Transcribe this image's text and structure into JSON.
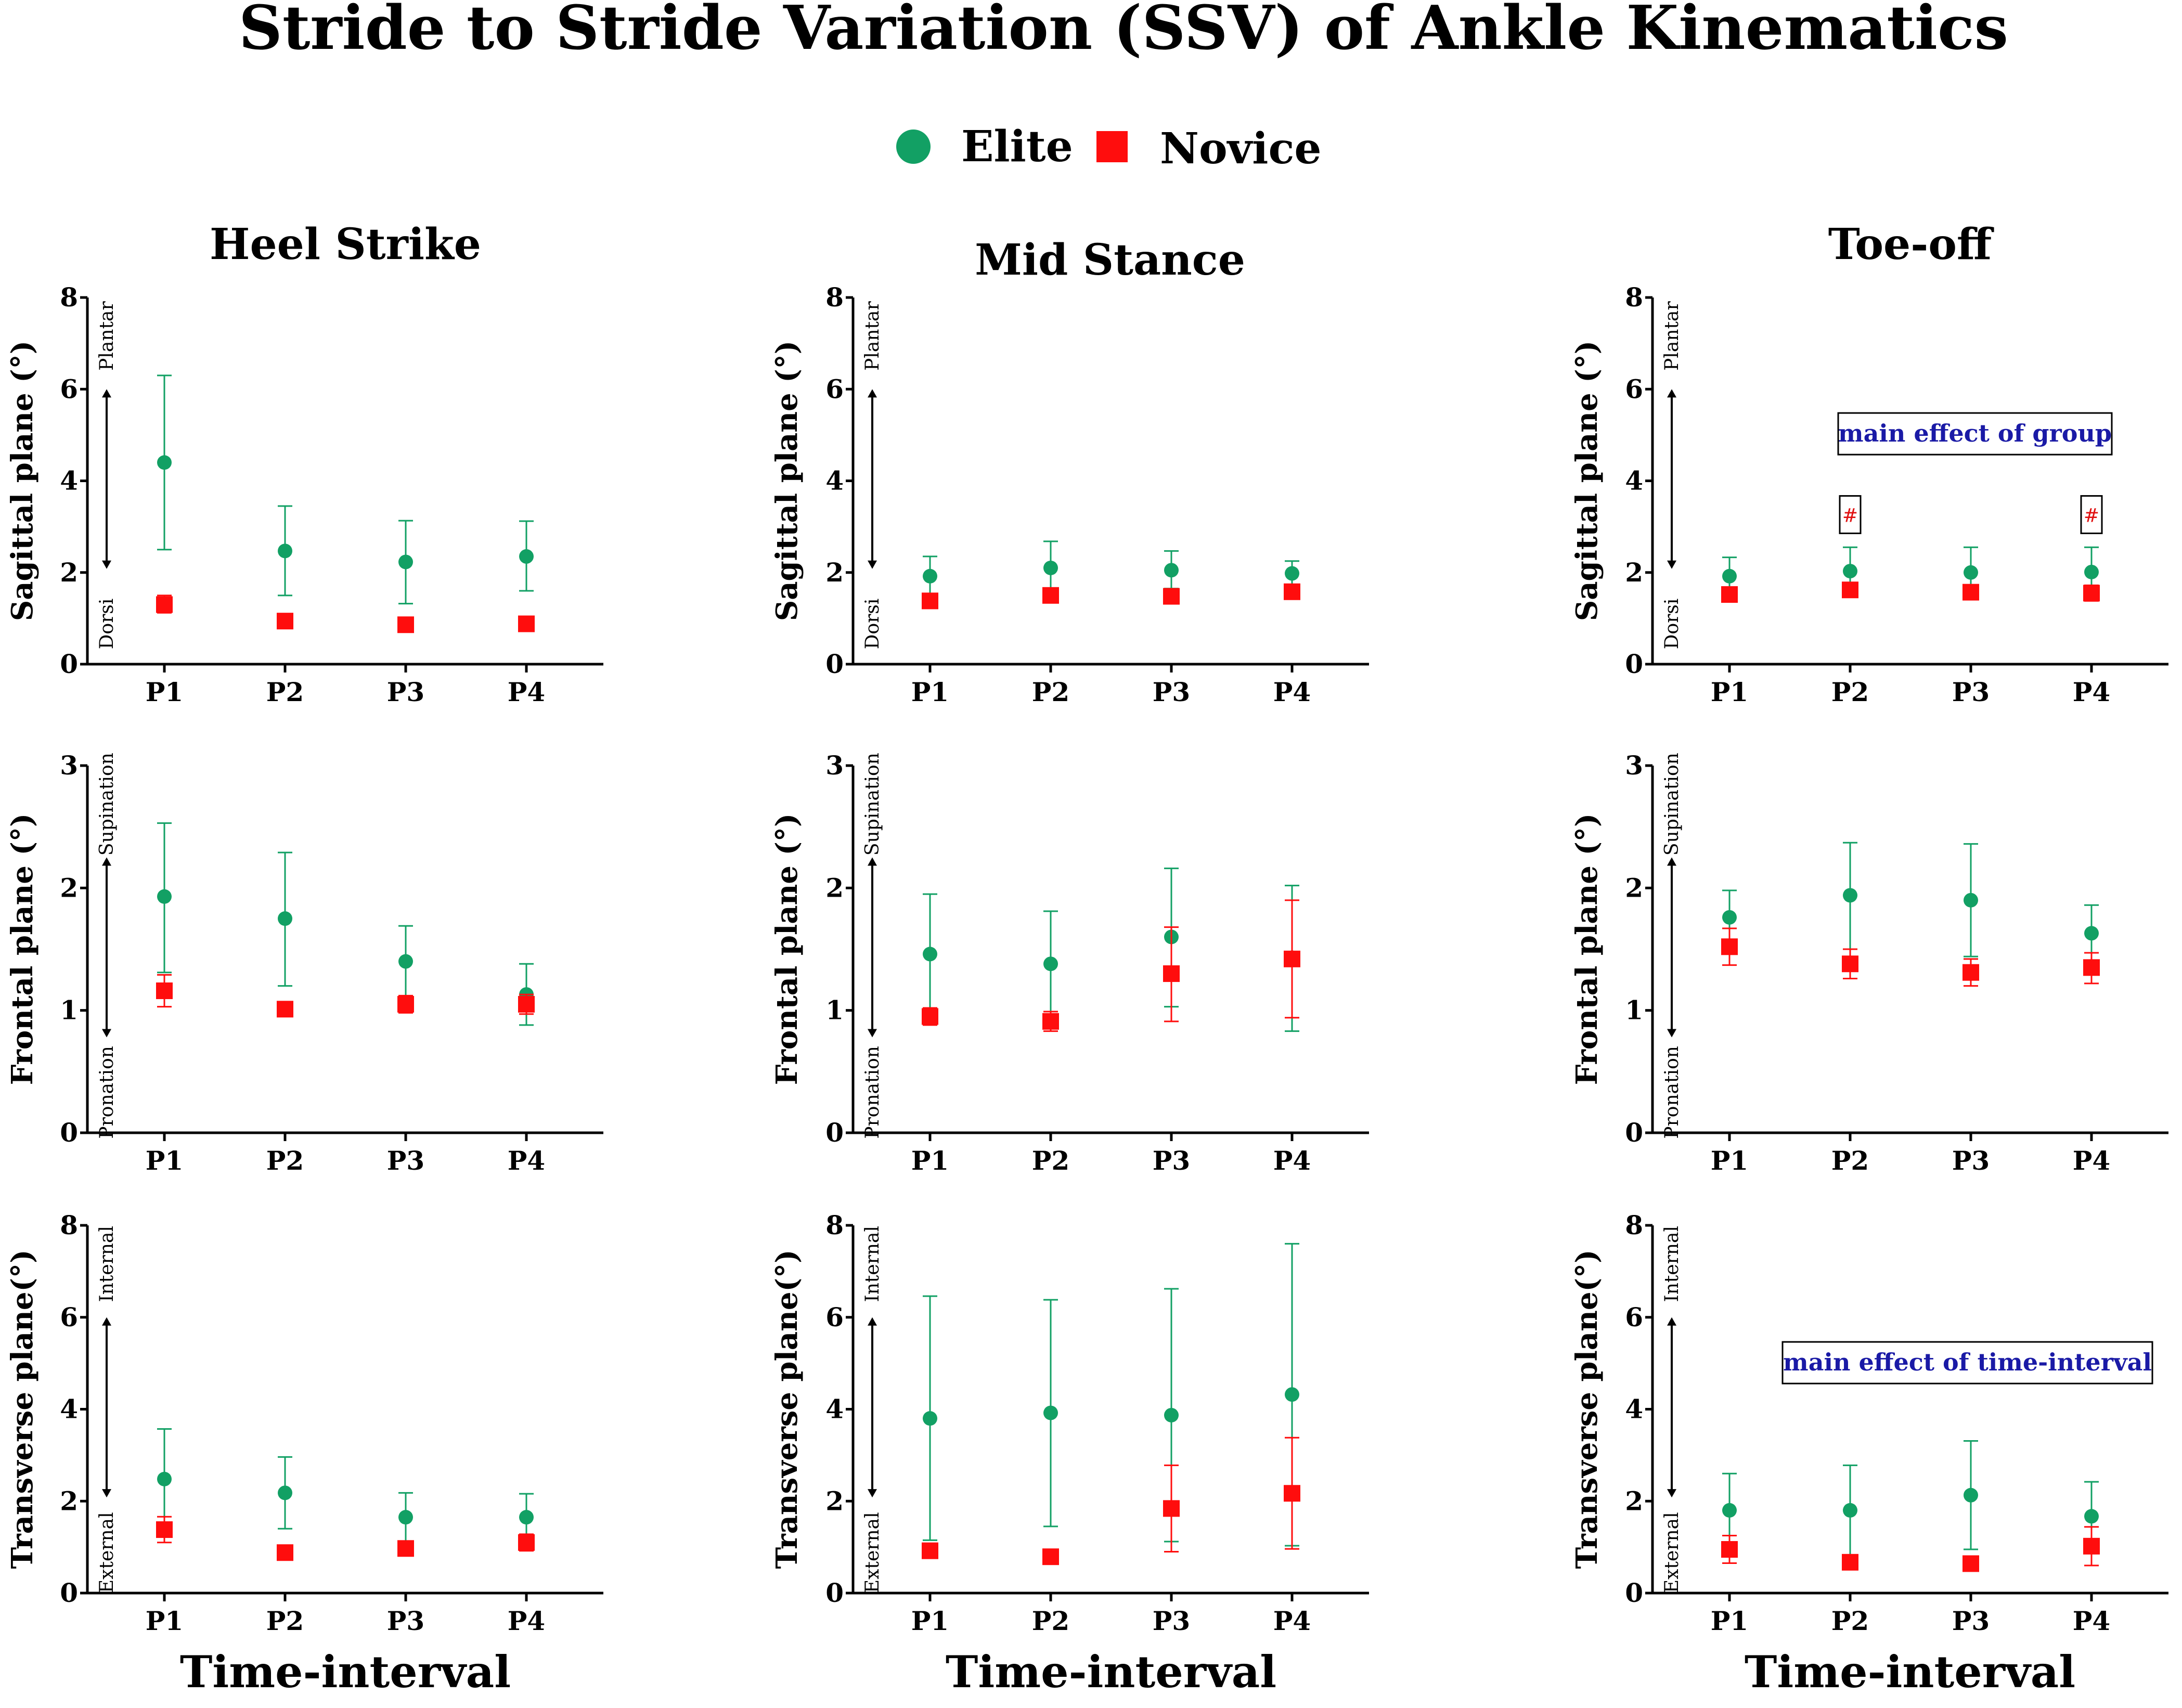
{
  "title": "Stride to Stride Variation (SSV) of Ankle Kinematics",
  "legend": [
    {
      "label": "Elite",
      "color": "#12a064",
      "marker": "circle"
    },
    {
      "label": "Novice",
      "color": "#ff0d0d",
      "marker": "square"
    }
  ],
  "columns": [
    "Heel Strike",
    "Mid Stance",
    "Toe-off"
  ],
  "x_axis_label": "Time-interval",
  "rows": [
    {
      "ylabel": "Sagittal plane (°)",
      "ylim": [
        0,
        8
      ],
      "ticks": [
        0,
        2,
        4,
        6,
        8
      ],
      "dir_top": "Plantar",
      "dir_bottom": "Dorsi"
    },
    {
      "ylabel": "Frontal plane (°)",
      "ylim": [
        0,
        3
      ],
      "ticks": [
        0,
        1,
        2,
        3
      ],
      "dir_top": "Supination",
      "dir_bottom": "Pronation"
    },
    {
      "ylabel": "Transverse plane(°)",
      "ylim": [
        0,
        8
      ],
      "ticks": [
        0,
        2,
        4,
        6,
        8
      ],
      "dir_top": "Internal",
      "dir_bottom": "External"
    }
  ],
  "chart_data": [
    {
      "type": "scatter",
      "row": 0,
      "col": 0,
      "categories": [
        "P1",
        "P2",
        "P3",
        "P4"
      ],
      "ylim": [
        0,
        8
      ],
      "series": [
        {
          "name": "Elite",
          "values": [
            4.4,
            2.47,
            2.23,
            2.35
          ],
          "lower": [
            2.5,
            1.5,
            1.32,
            1.6
          ],
          "upper": [
            6.3,
            3.45,
            3.13,
            3.12
          ]
        },
        {
          "name": "Novice",
          "values": [
            1.3,
            0.94,
            0.86,
            0.88
          ],
          "lower": [
            1.12,
            0.88,
            0.8,
            0.82
          ],
          "upper": [
            1.5,
            1.0,
            0.92,
            0.94
          ]
        }
      ]
    },
    {
      "type": "scatter",
      "row": 0,
      "col": 1,
      "categories": [
        "P1",
        "P2",
        "P3",
        "P4"
      ],
      "ylim": [
        0,
        8
      ],
      "series": [
        {
          "name": "Elite",
          "values": [
            1.92,
            2.1,
            2.05,
            1.98
          ],
          "lower": [
            1.5,
            1.55,
            1.65,
            1.72
          ],
          "upper": [
            2.35,
            2.68,
            2.47,
            2.25
          ]
        },
        {
          "name": "Novice",
          "values": [
            1.38,
            1.5,
            1.48,
            1.58
          ],
          "lower": [
            1.32,
            1.44,
            1.42,
            1.52
          ],
          "upper": [
            1.44,
            1.56,
            1.54,
            1.64
          ]
        }
      ]
    },
    {
      "type": "scatter",
      "row": 0,
      "col": 2,
      "categories": [
        "P1",
        "P2",
        "P3",
        "P4"
      ],
      "ylim": [
        0,
        8
      ],
      "annotations": [
        {
          "text": "main effect of group"
        },
        {
          "text": "#",
          "at": "P2"
        },
        {
          "text": "#",
          "at": "P4"
        }
      ],
      "series": [
        {
          "name": "Elite",
          "values": [
            1.92,
            2.03,
            2.0,
            2.01
          ],
          "lower": [
            1.55,
            1.55,
            1.55,
            1.55
          ],
          "upper": [
            2.33,
            2.55,
            2.55,
            2.55
          ]
        },
        {
          "name": "Novice",
          "values": [
            1.52,
            1.62,
            1.57,
            1.55
          ],
          "lower": [
            1.38,
            1.48,
            1.45,
            1.38
          ],
          "upper": [
            1.66,
            1.76,
            1.69,
            1.72
          ]
        }
      ]
    },
    {
      "type": "scatter",
      "row": 1,
      "col": 0,
      "categories": [
        "P1",
        "P2",
        "P3",
        "P4"
      ],
      "ylim": [
        0,
        3
      ],
      "series": [
        {
          "name": "Elite",
          "values": [
            1.93,
            1.75,
            1.4,
            1.13
          ],
          "lower": [
            1.31,
            1.2,
            1.11,
            0.88
          ],
          "upper": [
            2.53,
            2.29,
            1.69,
            1.38
          ]
        },
        {
          "name": "Novice",
          "values": [
            1.16,
            1.01,
            1.05,
            1.05
          ],
          "lower": [
            1.03,
            0.95,
            0.98,
            0.97
          ],
          "upper": [
            1.29,
            1.07,
            1.12,
            1.13
          ]
        }
      ]
    },
    {
      "type": "scatter",
      "row": 1,
      "col": 1,
      "categories": [
        "P1",
        "P2",
        "P3",
        "P4"
      ],
      "ylim": [
        0,
        3
      ],
      "series": [
        {
          "name": "Elite",
          "values": [
            1.46,
            1.38,
            1.6,
            1.43
          ],
          "lower": [
            0.98,
            0.93,
            1.03,
            0.83
          ],
          "upper": [
            1.95,
            1.81,
            2.16,
            2.02
          ]
        },
        {
          "name": "Novice",
          "values": [
            0.95,
            0.91,
            1.3,
            1.42
          ],
          "lower": [
            0.88,
            0.83,
            0.91,
            0.94
          ],
          "upper": [
            1.02,
            0.99,
            1.68,
            1.9
          ]
        }
      ]
    },
    {
      "type": "scatter",
      "row": 1,
      "col": 2,
      "categories": [
        "P1",
        "P2",
        "P3",
        "P4"
      ],
      "ylim": [
        0,
        3
      ],
      "series": [
        {
          "name": "Elite",
          "values": [
            1.76,
            1.94,
            1.9,
            1.63
          ],
          "lower": [
            1.55,
            1.5,
            1.44,
            1.41
          ],
          "upper": [
            1.98,
            2.37,
            2.36,
            1.86
          ]
        },
        {
          "name": "Novice",
          "values": [
            1.52,
            1.38,
            1.31,
            1.35
          ],
          "lower": [
            1.37,
            1.26,
            1.2,
            1.22
          ],
          "upper": [
            1.67,
            1.5,
            1.42,
            1.47
          ]
        }
      ]
    },
    {
      "type": "scatter",
      "row": 2,
      "col": 0,
      "categories": [
        "P1",
        "P2",
        "P3",
        "P4"
      ],
      "ylim": [
        0,
        8
      ],
      "series": [
        {
          "name": "Elite",
          "values": [
            2.48,
            2.18,
            1.65,
            1.65
          ],
          "lower": [
            1.4,
            1.4,
            1.12,
            1.12
          ],
          "upper": [
            3.57,
            2.96,
            2.18,
            2.16
          ]
        },
        {
          "name": "Novice",
          "values": [
            1.38,
            0.88,
            0.97,
            1.1
          ],
          "lower": [
            1.1,
            0.82,
            0.9,
            0.92
          ],
          "upper": [
            1.66,
            0.94,
            1.04,
            1.28
          ]
        }
      ]
    },
    {
      "type": "scatter",
      "row": 2,
      "col": 1,
      "categories": [
        "P1",
        "P2",
        "P3",
        "P4"
      ],
      "ylim": [
        0,
        8
      ],
      "series": [
        {
          "name": "Elite",
          "values": [
            3.8,
            3.92,
            3.87,
            4.32
          ],
          "lower": [
            1.15,
            1.45,
            1.12,
            1.03
          ],
          "upper": [
            6.46,
            6.38,
            6.62,
            7.6
          ]
        },
        {
          "name": "Novice",
          "values": [
            0.92,
            0.79,
            1.84,
            2.17
          ],
          "lower": [
            0.85,
            0.73,
            0.9,
            0.96
          ],
          "upper": [
            0.99,
            0.85,
            2.78,
            3.38
          ]
        }
      ]
    },
    {
      "type": "scatter",
      "row": 2,
      "col": 2,
      "categories": [
        "P1",
        "P2",
        "P3",
        "P4"
      ],
      "ylim": [
        0,
        8
      ],
      "annotations": [
        {
          "text": "main effect of time-interval"
        }
      ],
      "series": [
        {
          "name": "Elite",
          "values": [
            1.8,
            1.8,
            2.13,
            1.67
          ],
          "lower": [
            1.0,
            0.82,
            0.95,
            0.92
          ],
          "upper": [
            2.6,
            2.78,
            3.31,
            2.42
          ]
        },
        {
          "name": "Novice",
          "values": [
            0.95,
            0.67,
            0.64,
            1.02
          ],
          "lower": [
            0.65,
            0.61,
            0.58,
            0.6
          ],
          "upper": [
            1.25,
            0.73,
            0.7,
            1.44
          ]
        }
      ]
    }
  ]
}
